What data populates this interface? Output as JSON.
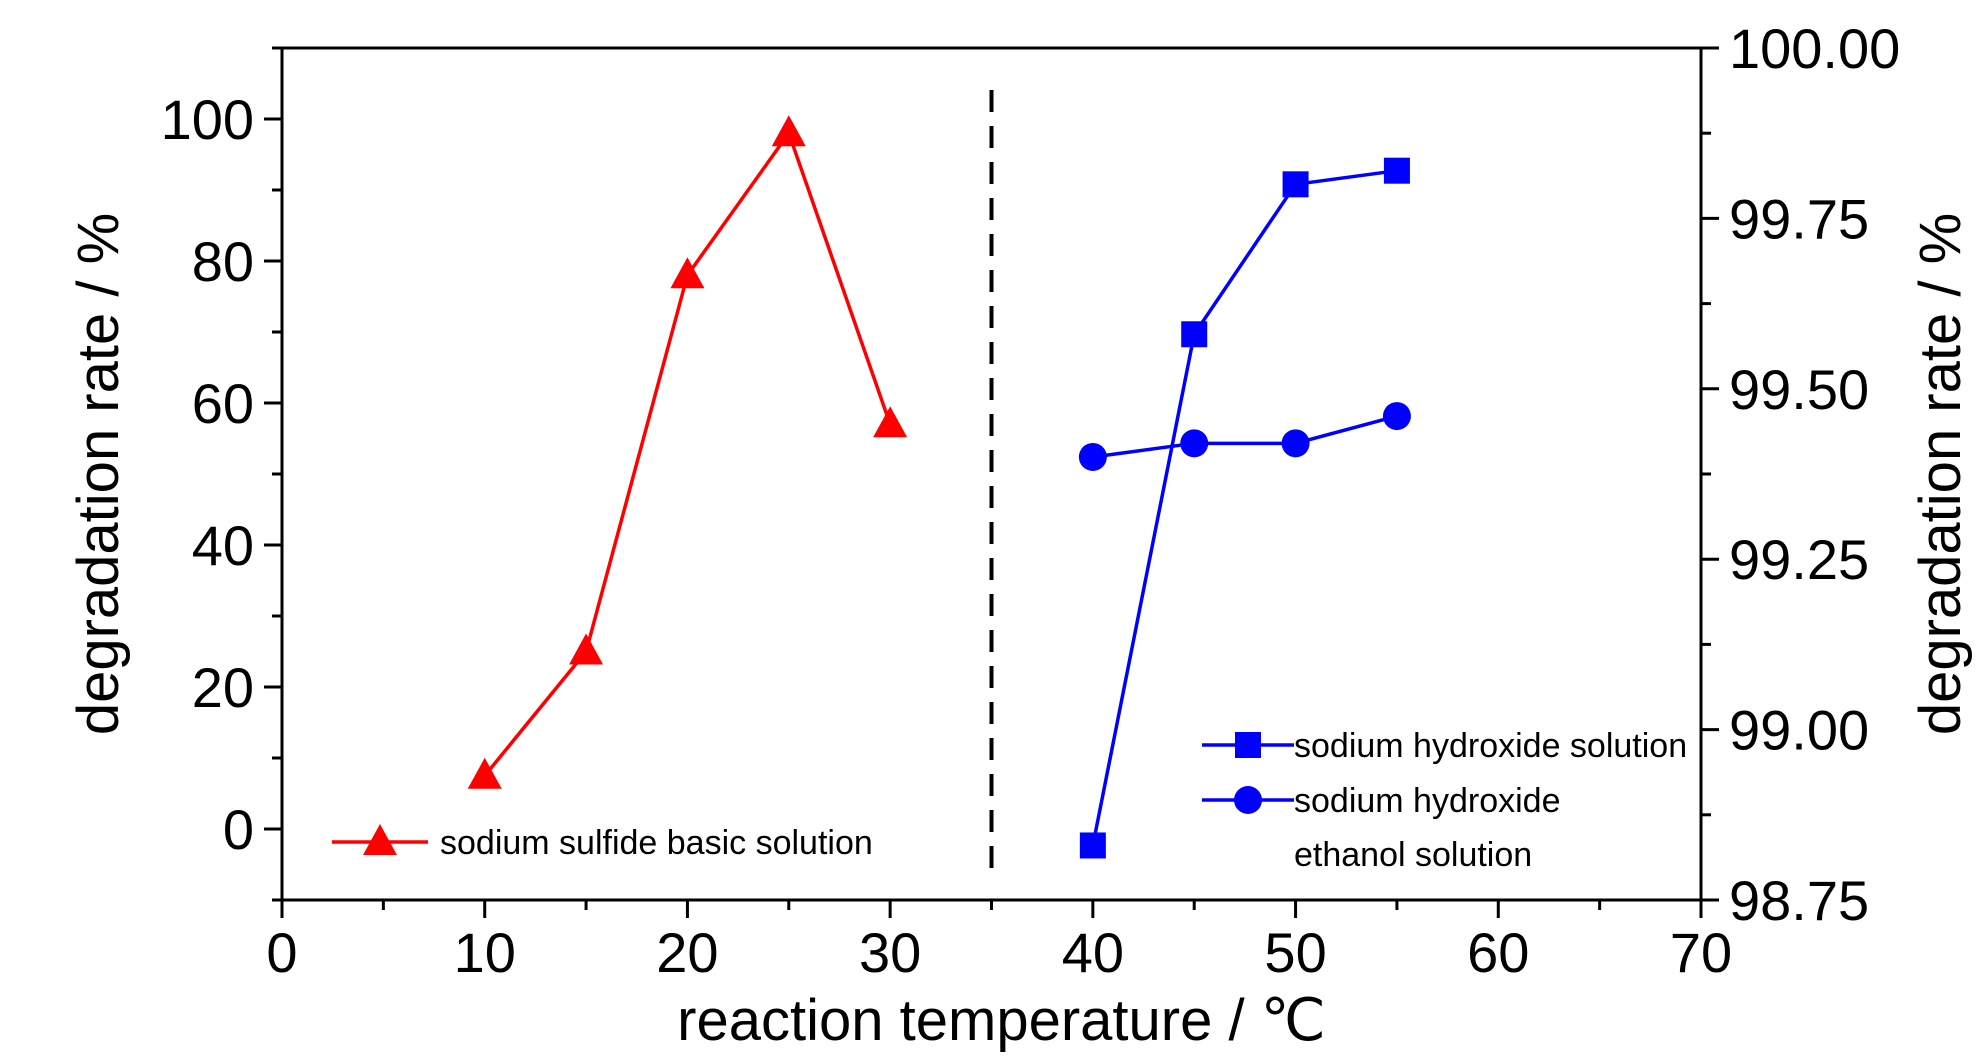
{
  "chart_data": {
    "type": "line",
    "xlabel": "reaction temperature / ℃",
    "ylabel_left": "degradation rate / %",
    "ylabel_right": "degradation rate / %",
    "xlim": [
      0,
      70
    ],
    "ylim_left": [
      -10,
      110
    ],
    "ylim_right": [
      98.75,
      100.0
    ],
    "x_ticks": [
      "0",
      "10",
      "20",
      "30",
      "40",
      "50",
      "60",
      "70"
    ],
    "y_left_ticks": [
      "0",
      "20",
      "40",
      "60",
      "80",
      "100"
    ],
    "y_right_ticks": [
      "98.75",
      "99.00",
      "99.25",
      "99.50",
      "99.75",
      "100.00"
    ],
    "divider_x": 35,
    "grid": false,
    "series": [
      {
        "name": "sodium sulfide basic solution",
        "axis": "left",
        "color": "#ff0000",
        "marker": "triangle",
        "x": [
          10,
          15,
          20,
          25,
          30
        ],
        "y": [
          7.5,
          25,
          78,
          98,
          57
        ]
      },
      {
        "name": "sodium hydroxide solution",
        "axis": "right",
        "color": "#0000ff",
        "marker": "square",
        "x": [
          40,
          45,
          50,
          55
        ],
        "y": [
          98.83,
          99.58,
          99.8,
          99.82
        ]
      },
      {
        "name": "sodium hydroxide ethanol solution",
        "legend_lines": [
          "sodium hydroxide",
          "ethanol solution"
        ],
        "axis": "right",
        "color": "#0000ff",
        "marker": "circle",
        "x": [
          40,
          45,
          50,
          55
        ],
        "y": [
          99.4,
          99.42,
          99.42,
          99.46
        ]
      }
    ]
  }
}
